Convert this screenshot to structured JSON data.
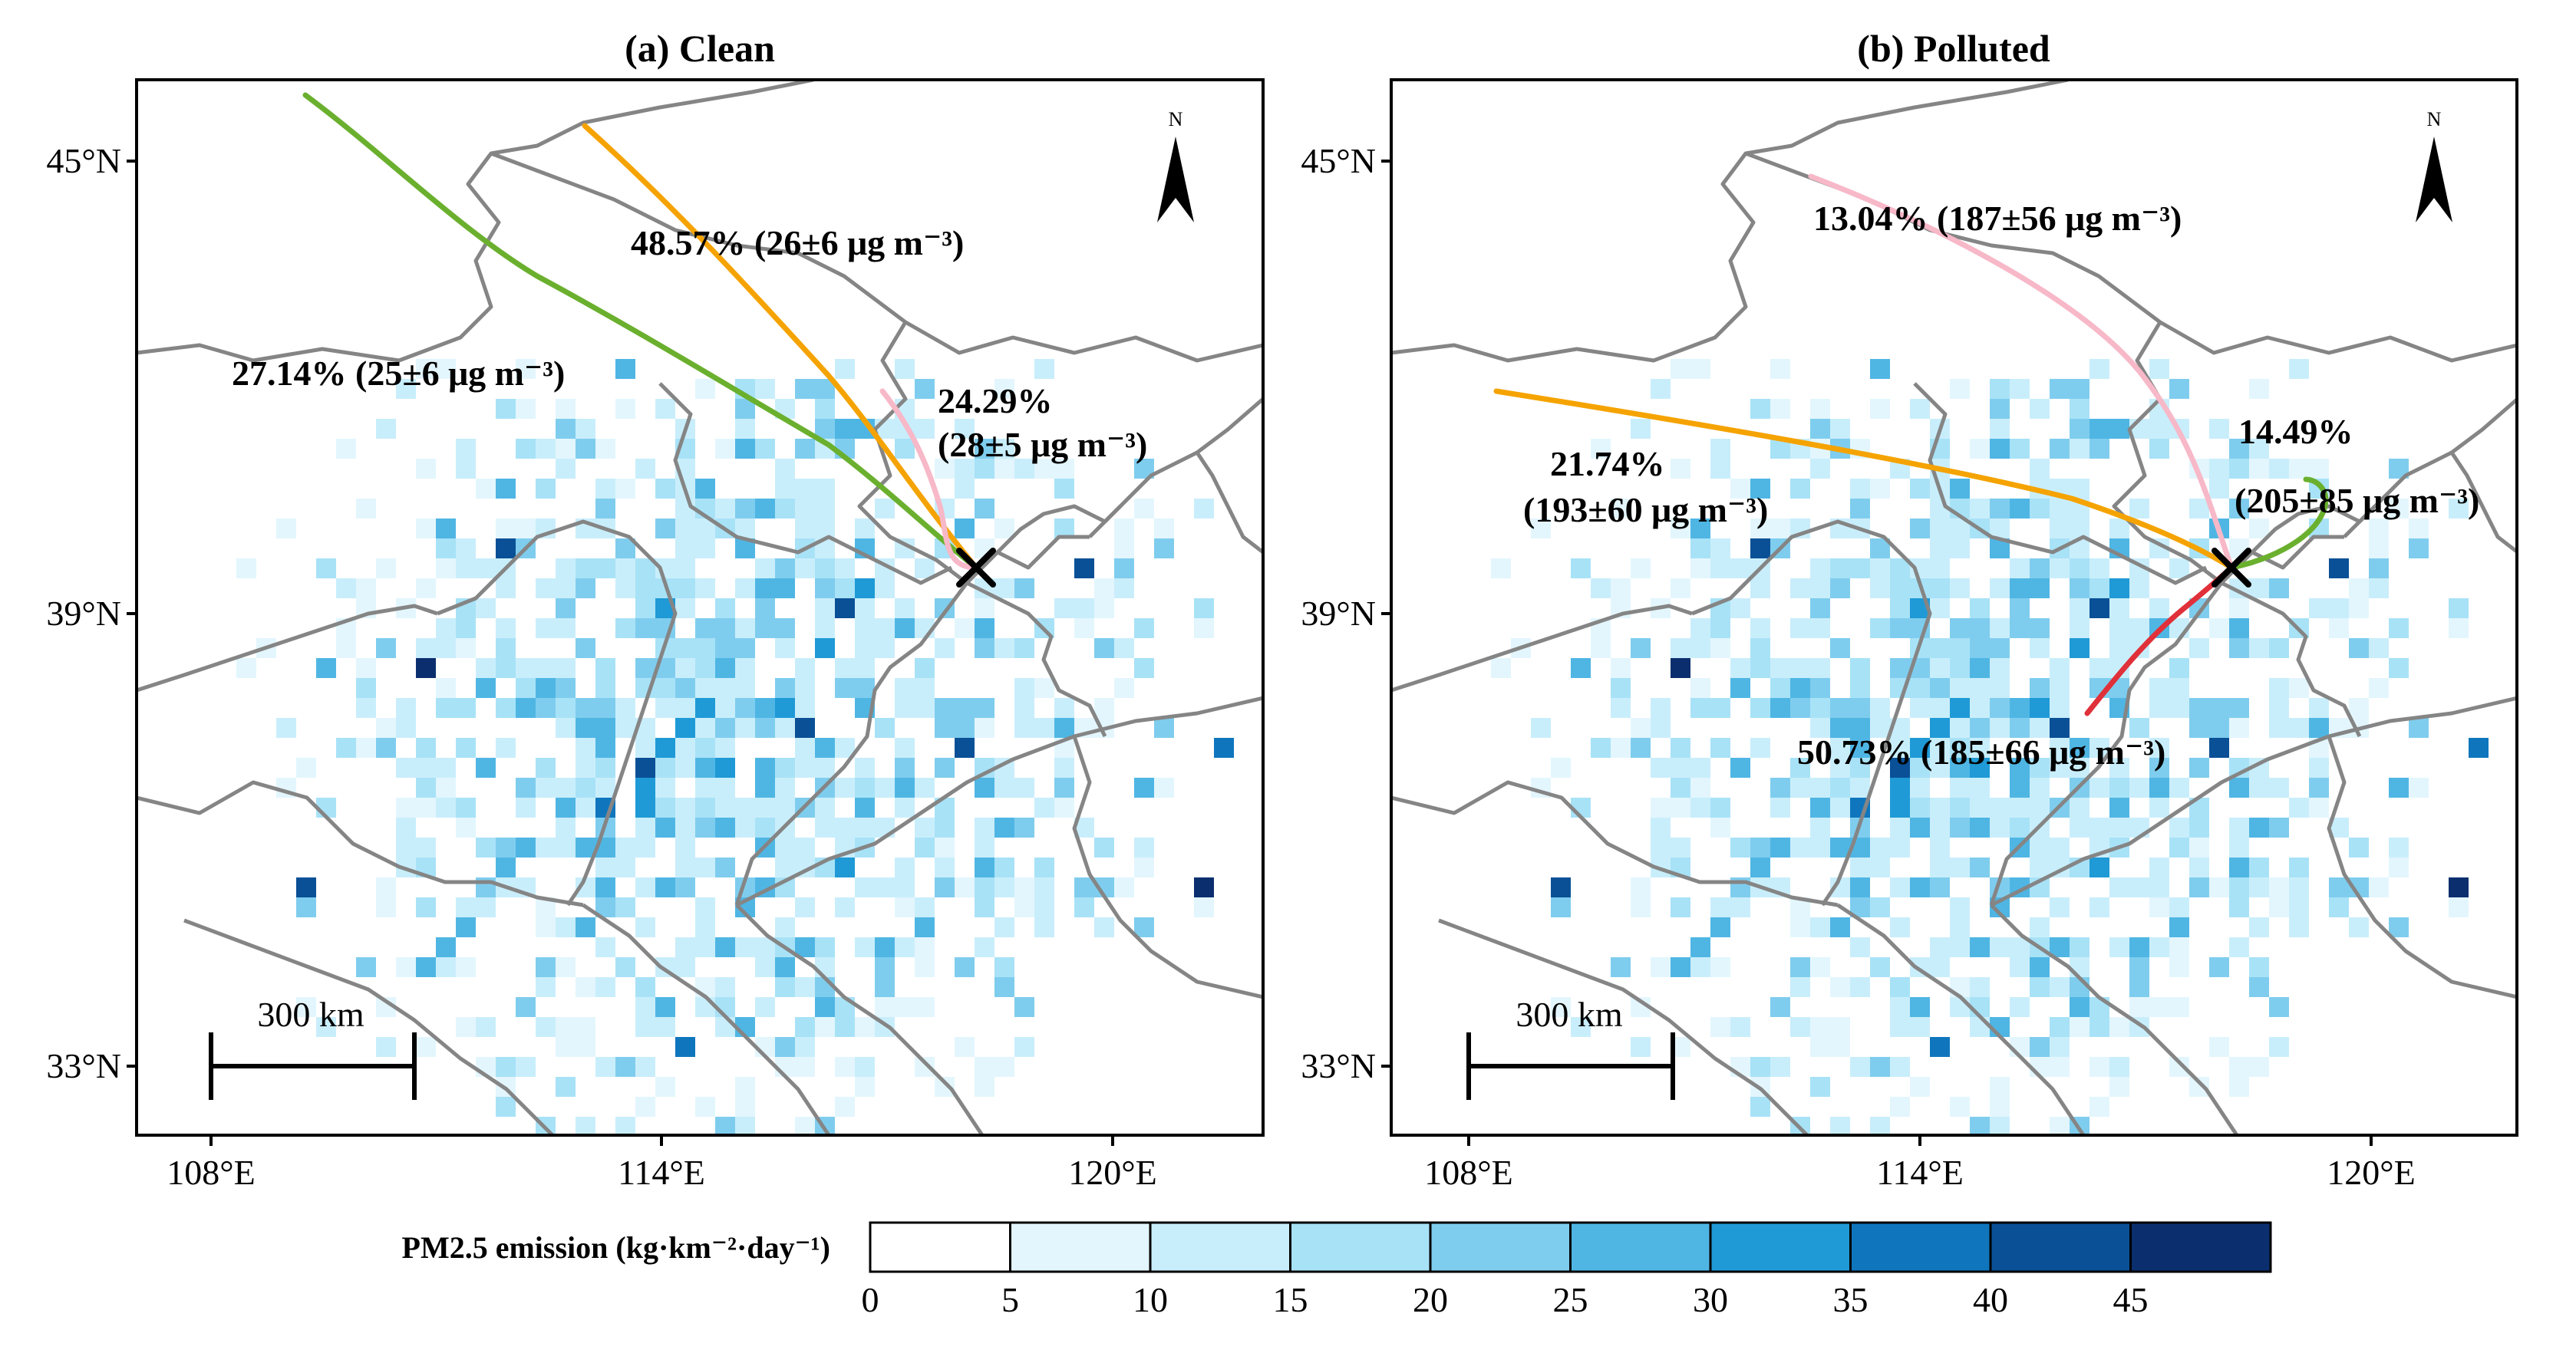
{
  "figure": {
    "panels": [
      {
        "id": "a",
        "title_tag": "(a)",
        "title": "Clean",
        "x_ticks": [
          "108°E",
          "114°E",
          "120°E"
        ],
        "y_ticks": [
          "45°N",
          "39°N",
          "33°N"
        ],
        "north_label": "N",
        "scale_label": "300 km",
        "trajectories": [
          {
            "color": "#f5a300",
            "label_lines": [
              "48.57% (26±6 μg m⁻³)"
            ]
          },
          {
            "color": "#6ab02e",
            "label_lines": [
              "27.14% (25±6 μg m⁻³)"
            ]
          },
          {
            "color": "#f7b8c8",
            "label_lines": [
              "24.29%",
              "(28±5 μg m⁻³)"
            ]
          }
        ]
      },
      {
        "id": "b",
        "title_tag": "(b)",
        "title": "Polluted",
        "x_ticks": [
          "108°E",
          "114°E",
          "120°E"
        ],
        "y_ticks": [
          "45°N",
          "39°N",
          "33°N"
        ],
        "north_label": "N",
        "scale_label": "300 km",
        "trajectories": [
          {
            "color": "#f7b8c8",
            "label_lines": [
              "13.04% (187±56 μg m⁻³)"
            ]
          },
          {
            "color": "#f5a300",
            "label_lines": [
              "21.74%",
              "(193±60 μg m⁻³)"
            ]
          },
          {
            "color": "#6ab02e",
            "label_lines": [
              "14.49%",
              "(205±85 μg m⁻³)"
            ]
          },
          {
            "color": "#e0303a",
            "label_lines": [
              "50.73% (185±66 μg m⁻³)"
            ]
          }
        ]
      }
    ],
    "colorbar": {
      "title": "PM2.5 emission (kg·km⁻²·day⁻¹)",
      "ticks": [
        "0",
        "5",
        "10",
        "15",
        "20",
        "25",
        "30",
        "35",
        "40",
        "45"
      ],
      "colors": [
        "#ffffff",
        "#e3f6fd",
        "#c9eefb",
        "#a8e2f7",
        "#7fcdee",
        "#4fb6e4",
        "#1f9ad6",
        "#0f76bd",
        "#0a5096",
        "#0b2f6e"
      ]
    }
  }
}
